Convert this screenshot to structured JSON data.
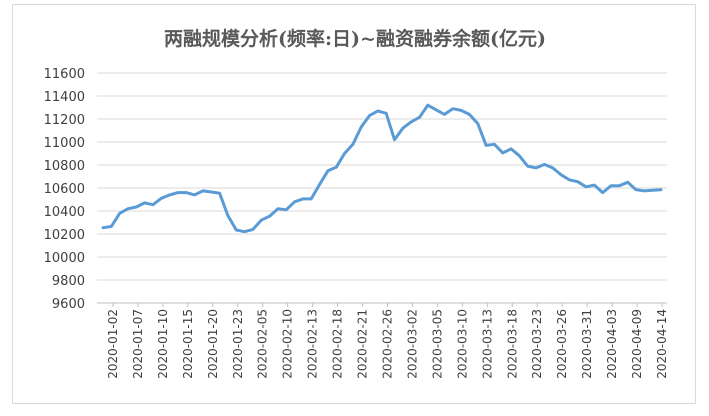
{
  "chart_data": {
    "type": "line",
    "title": "两融规模分析(频率:日)~融资融券余额(亿元)",
    "xlabel": "",
    "ylabel": "",
    "ylim": [
      9600,
      11600
    ],
    "yticks": [
      9600,
      9800,
      10000,
      10200,
      10400,
      10600,
      10800,
      11000,
      11200,
      11400,
      11600
    ],
    "grid": true,
    "legend": "none",
    "x_tick_labels": [
      "2020-01-02",
      "2020-01-07",
      "2020-01-10",
      "2020-01-15",
      "2020-01-20",
      "2020-01-23",
      "2020-02-05",
      "2020-02-10",
      "2020-02-13",
      "2020-02-18",
      "2020-02-21",
      "2020-02-26",
      "2020-03-02",
      "2020-03-05",
      "2020-03-10",
      "2020-03-13",
      "2020-03-18",
      "2020-03-23",
      "2020-03-26",
      "2020-03-31",
      "2020-04-03",
      "2020-04-09",
      "2020-04-14"
    ],
    "series": [
      {
        "color": "#5b9bd5",
        "values": [
          10255,
          10265,
          10380,
          10420,
          10435,
          10470,
          10455,
          10510,
          10540,
          10560,
          10560,
          10540,
          10575,
          10565,
          10555,
          10360,
          10235,
          10220,
          10240,
          10320,
          10355,
          10420,
          10410,
          10480,
          10505,
          10505,
          10630,
          10750,
          10780,
          10900,
          10980,
          11130,
          11230,
          11270,
          11250,
          11020,
          11120,
          11175,
          11215,
          11320,
          11280,
          11240,
          11290,
          11275,
          11240,
          11160,
          10970,
          10980,
          10905,
          10940,
          10880,
          10790,
          10775,
          10805,
          10775,
          10715,
          10670,
          10655,
          10610,
          10625,
          10560,
          10620,
          10620,
          10650,
          10585,
          10575,
          10580,
          10585
        ]
      }
    ]
  }
}
